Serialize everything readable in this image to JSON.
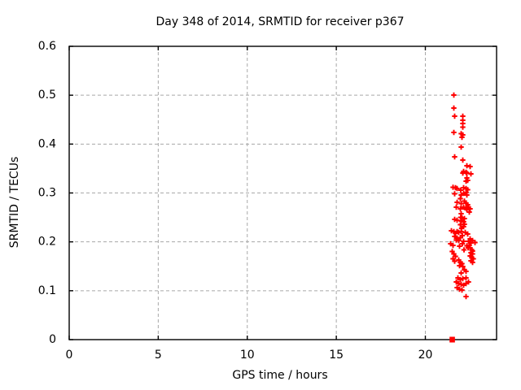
{
  "figure": {
    "background": "#ffffff"
  },
  "chart_data": {
    "type": "scatter",
    "title": "Day 348 of 2014, SRMTID for receiver p367",
    "xlabel": "GPS time / hours",
    "ylabel": "SRMTID / TECUs",
    "xlim": [
      0,
      24
    ],
    "ylim": [
      0,
      0.6
    ],
    "xticks": {
      "values": [
        0,
        5,
        10,
        15,
        20
      ],
      "labels": [
        "0",
        "5",
        "10",
        "15",
        "20"
      ]
    },
    "yticks": {
      "values": [
        0,
        0.1,
        0.2,
        0.3,
        0.4,
        0.5,
        0.6
      ],
      "labels": [
        "0",
        "0.1",
        "0.2",
        "0.3",
        "0.4",
        "0.5",
        "0.6"
      ]
    },
    "grid": true,
    "legend_position": "none",
    "marker": "plus",
    "marker_color": "#ff0000",
    "grid_color": "#a8a8a8",
    "axis_color": "#000000",
    "series": [
      {
        "name": "SRMTID",
        "points": [
          [
            21.6,
            0.5
          ],
          [
            21.6,
            0.474
          ],
          [
            21.65,
            0.457
          ],
          [
            22.11,
            0.457
          ],
          [
            22.11,
            0.449
          ],
          [
            22.11,
            0.442
          ],
          [
            22.11,
            0.435
          ],
          [
            21.6,
            0.424
          ],
          [
            22.01,
            0.421
          ],
          [
            22.11,
            0.419
          ],
          [
            22.06,
            0.414
          ],
          [
            22.01,
            0.394
          ],
          [
            21.65,
            0.374
          ],
          [
            22.11,
            0.367
          ],
          [
            22.33,
            0.356
          ],
          [
            22.52,
            0.354
          ],
          [
            22.15,
            0.344
          ],
          [
            22.29,
            0.342
          ],
          [
            22.11,
            0.341
          ],
          [
            22.33,
            0.341
          ],
          [
            22.56,
            0.339
          ],
          [
            22.33,
            0.331
          ],
          [
            22.38,
            0.326
          ],
          [
            22.29,
            0.324
          ],
          [
            21.56,
            0.312
          ],
          [
            21.69,
            0.311
          ],
          [
            21.78,
            0.309
          ],
          [
            22.15,
            0.311
          ],
          [
            22.29,
            0.309
          ],
          [
            22.38,
            0.307
          ],
          [
            21.65,
            0.298
          ],
          [
            22.15,
            0.299
          ],
          [
            22.29,
            0.301
          ],
          [
            22.33,
            0.296
          ],
          [
            21.78,
            0.281
          ],
          [
            22.2,
            0.283
          ],
          [
            22.29,
            0.279
          ],
          [
            22.38,
            0.276
          ],
          [
            22.43,
            0.271
          ],
          [
            22.52,
            0.268
          ],
          [
            22.33,
            0.266
          ],
          [
            21.74,
            0.271
          ],
          [
            22.15,
            0.271
          ],
          [
            22.29,
            0.269
          ],
          [
            22.47,
            0.261
          ],
          [
            21.65,
            0.246
          ],
          [
            21.78,
            0.244
          ],
          [
            22.06,
            0.249
          ],
          [
            22.2,
            0.248
          ],
          [
            22.15,
            0.241
          ],
          [
            22.2,
            0.236
          ],
          [
            22.15,
            0.231
          ],
          [
            21.46,
            0.223
          ],
          [
            21.6,
            0.221
          ],
          [
            21.78,
            0.221
          ],
          [
            21.69,
            0.218
          ],
          [
            21.88,
            0.219
          ],
          [
            22.01,
            0.221
          ],
          [
            22.24,
            0.219
          ],
          [
            22.38,
            0.216
          ],
          [
            21.65,
            0.211
          ],
          [
            21.78,
            0.208
          ],
          [
            21.97,
            0.209
          ],
          [
            21.74,
            0.204
          ],
          [
            21.88,
            0.203
          ],
          [
            22.52,
            0.206
          ],
          [
            22.65,
            0.203
          ],
          [
            22.79,
            0.199
          ],
          [
            21.42,
            0.196
          ],
          [
            21.56,
            0.193
          ],
          [
            22.15,
            0.201
          ],
          [
            22.43,
            0.201
          ],
          [
            22.56,
            0.198
          ],
          [
            22.52,
            0.188
          ],
          [
            22.61,
            0.184
          ],
          [
            22.65,
            0.181
          ],
          [
            22.56,
            0.178
          ],
          [
            22.65,
            0.175
          ],
          [
            22.52,
            0.171
          ],
          [
            22.61,
            0.168
          ],
          [
            22.7,
            0.165
          ],
          [
            22.56,
            0.161
          ],
          [
            22.65,
            0.158
          ],
          [
            21.51,
            0.18
          ],
          [
            21.6,
            0.175
          ],
          [
            21.69,
            0.17
          ],
          [
            21.56,
            0.165
          ],
          [
            21.65,
            0.16
          ],
          [
            21.88,
            0.163
          ],
          [
            21.97,
            0.158
          ],
          [
            22.06,
            0.155
          ],
          [
            21.92,
            0.151
          ],
          [
            22.11,
            0.15
          ],
          [
            22.2,
            0.143
          ],
          [
            22.29,
            0.14
          ],
          [
            22.01,
            0.136
          ],
          [
            21.83,
            0.126
          ],
          [
            21.97,
            0.123
          ],
          [
            22.11,
            0.125
          ],
          [
            22.29,
            0.126
          ],
          [
            21.74,
            0.118
          ],
          [
            21.88,
            0.115
          ],
          [
            22.01,
            0.113
          ],
          [
            22.15,
            0.111
          ],
          [
            22.29,
            0.115
          ],
          [
            22.43,
            0.118
          ],
          [
            21.78,
            0.106
          ],
          [
            21.92,
            0.103
          ],
          [
            22.06,
            0.101
          ],
          [
            22.29,
            0.088
          ],
          [
            21.99,
            0.306
          ],
          [
            22.02,
            0.296
          ],
          [
            21.97,
            0.288
          ],
          [
            22.0,
            0.278
          ],
          [
            21.96,
            0.268
          ],
          [
            22.0,
            0.258
          ],
          [
            21.98,
            0.25
          ],
          [
            22.02,
            0.243
          ],
          [
            21.97,
            0.235
          ],
          [
            22.04,
            0.228
          ],
          [
            22.07,
            0.213
          ],
          [
            22.09,
            0.196
          ],
          [
            21.92,
            0.191
          ],
          [
            22.18,
            0.184
          ],
          [
            22.33,
            0.192
          ],
          [
            22.4,
            0.188
          ],
          [
            22.46,
            0.193
          ]
        ]
      }
    ],
    "zero_marker": {
      "x": 21.51,
      "y": 0
    }
  }
}
